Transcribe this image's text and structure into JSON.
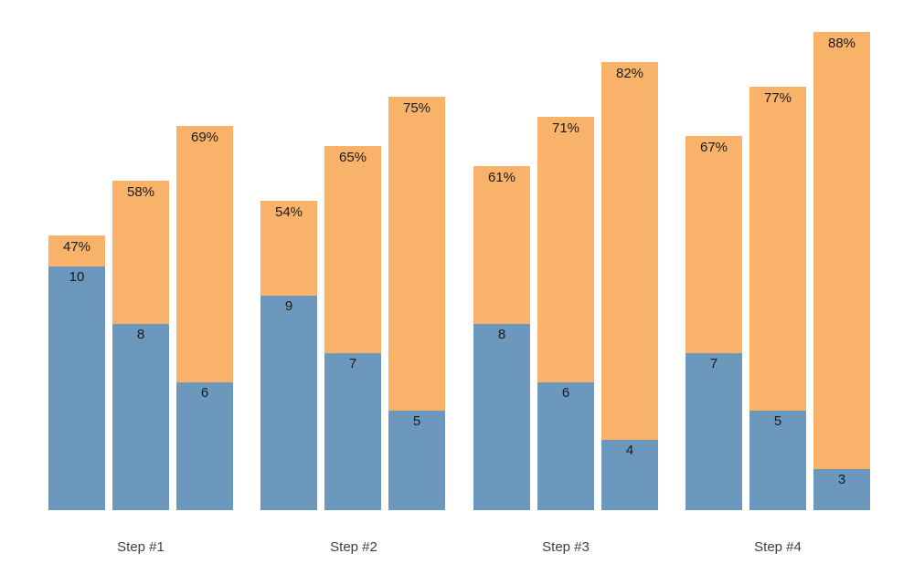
{
  "colors": {
    "blue_segment": "#6d98bd",
    "orange_segment": "#f8b26a",
    "bar_label_text": "#1a1a1a",
    "category_label_text": "#404040",
    "background": "#ffffff"
  },
  "chart_data": {
    "type": "bar",
    "subtype": "grouped-stacked",
    "description": "Four groups of three vertical bars. Each bar has a blue bottom segment labeled with an integer value and an orange upper segment labeled with a percentage at the bar top. No axes, ticks, gridlines or legend are visible.",
    "categories": [
      "Step #1",
      "Step #2",
      "Step #3",
      "Step #4"
    ],
    "series": [
      {
        "name": "first-bar-in-group",
        "values": [
          10,
          9,
          8,
          7
        ],
        "percents": [
          47,
          54,
          61,
          67
        ]
      },
      {
        "name": "second-bar-in-group",
        "values": [
          8,
          7,
          6,
          5
        ],
        "percents": [
          58,
          65,
          71,
          77
        ]
      },
      {
        "name": "third-bar-in-group",
        "values": [
          6,
          5,
          4,
          3
        ],
        "percents": [
          69,
          75,
          82,
          88
        ]
      }
    ],
    "percent_label_suffix": "%",
    "legend": "none",
    "axes_visible": false,
    "grid": false
  }
}
